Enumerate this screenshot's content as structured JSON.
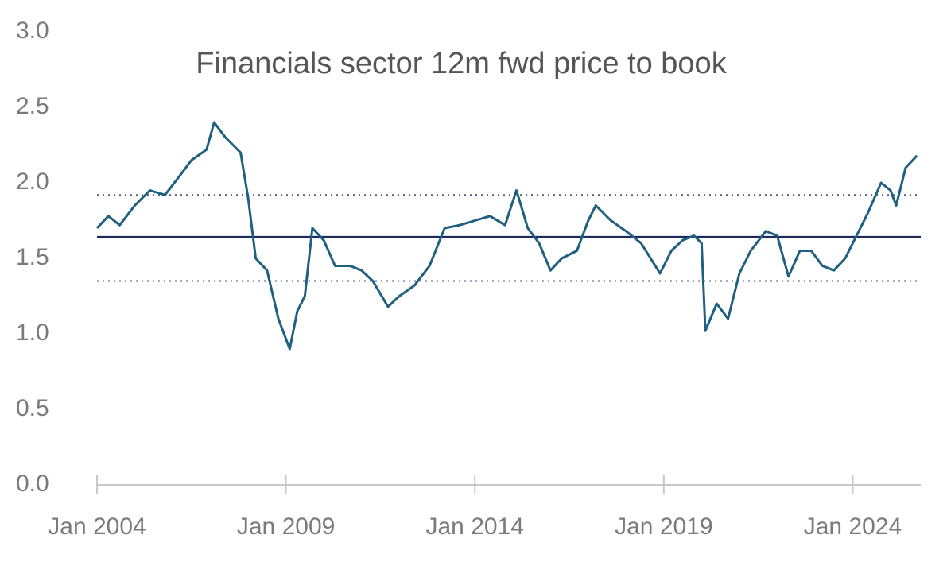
{
  "chart_data": {
    "type": "line",
    "title": "Financials sector 12m fwd price to book",
    "series": [
      {
        "color": "#1f5f80",
        "x": [
          2004.0,
          2004.3,
          2004.6,
          2005.0,
          2005.4,
          2005.8,
          2006.2,
          2006.5,
          2006.9,
          2007.1,
          2007.4,
          2007.8,
          2008.0,
          2008.2,
          2008.5,
          2008.8,
          2009.1,
          2009.3,
          2009.5,
          2009.7,
          2010.0,
          2010.3,
          2010.7,
          2011.0,
          2011.3,
          2011.7,
          2012.0,
          2012.4,
          2012.8,
          2013.2,
          2013.6,
          2014.0,
          2014.4,
          2014.8,
          2015.1,
          2015.4,
          2015.7,
          2016.0,
          2016.3,
          2016.7,
          2017.0,
          2017.2,
          2017.6,
          2018.0,
          2018.4,
          2018.9,
          2019.2,
          2019.5,
          2019.8,
          2020.0,
          2020.1,
          2020.4,
          2020.7,
          2021.0,
          2021.3,
          2021.7,
          2022.0,
          2022.3,
          2022.6,
          2022.9,
          2023.2,
          2023.5,
          2023.8,
          2024.1,
          2024.4,
          2024.75,
          2025.0,
          2025.15,
          2025.4,
          2025.7
        ],
        "values": [
          1.7,
          1.78,
          1.72,
          1.85,
          1.95,
          1.92,
          2.05,
          2.15,
          2.22,
          2.4,
          2.3,
          2.2,
          1.9,
          1.5,
          1.42,
          1.1,
          0.9,
          1.15,
          1.25,
          1.7,
          1.62,
          1.45,
          1.45,
          1.42,
          1.35,
          1.18,
          1.25,
          1.32,
          1.45,
          1.7,
          1.72,
          1.75,
          1.78,
          1.72,
          1.95,
          1.7,
          1.6,
          1.42,
          1.5,
          1.55,
          1.75,
          1.85,
          1.75,
          1.68,
          1.6,
          1.4,
          1.55,
          1.62,
          1.65,
          1.6,
          1.02,
          1.2,
          1.1,
          1.4,
          1.55,
          1.68,
          1.65,
          1.38,
          1.55,
          1.55,
          1.45,
          1.42,
          1.5,
          1.65,
          1.8,
          2.0,
          1.95,
          1.85,
          2.1,
          2.18
        ]
      }
    ],
    "reference_lines": [
      {
        "value": 1.64,
        "style": "solid",
        "color": "#1c2a5c"
      },
      {
        "value": 1.92,
        "style": "dotted",
        "color": "#4a5a8c"
      },
      {
        "value": 1.35,
        "style": "dotted",
        "color": "#4a5a8c"
      }
    ],
    "xlim": [
      2004,
      2025.8
    ],
    "xticks": [
      {
        "value": 2004,
        "label": "Jan 2004"
      },
      {
        "value": 2009,
        "label": "Jan 2009"
      },
      {
        "value": 2014,
        "label": "Jan 2014"
      },
      {
        "value": 2019,
        "label": "Jan 2019"
      },
      {
        "value": 2024,
        "label": "Jan 2024"
      }
    ],
    "ylim": [
      0,
      3
    ],
    "yticks": [
      {
        "value": 0,
        "label": "0.0"
      },
      {
        "value": 0.5,
        "label": "0.5"
      },
      {
        "value": 1,
        "label": "1.0"
      },
      {
        "value": 1.5,
        "label": "1.5"
      },
      {
        "value": 2,
        "label": "2.0"
      },
      {
        "value": 2.5,
        "label": "2.5"
      },
      {
        "value": 3,
        "label": "3.0"
      }
    ],
    "grid": false
  }
}
